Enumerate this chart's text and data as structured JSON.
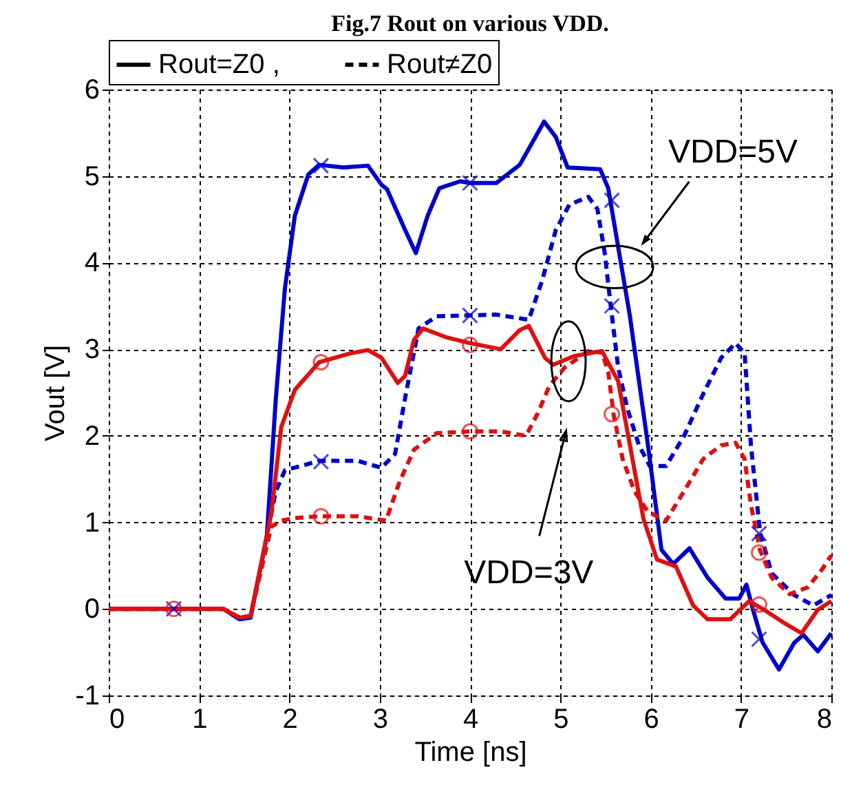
{
  "chart_data": {
    "type": "line",
    "title": "Fig.7  Rout on various VDD.",
    "xlabel": "Time [ns]",
    "ylabel": "Vout [V]",
    "xlim": [
      0,
      8
    ],
    "ylim": [
      -1,
      6
    ],
    "xticks": [
      0,
      1,
      2,
      3,
      4,
      5,
      6,
      7,
      8
    ],
    "yticks": [
      -1,
      0,
      1,
      2,
      3,
      4,
      5,
      6
    ],
    "grid": true,
    "series": [
      {
        "color": "#0000cc",
        "line_style": "solid",
        "x": [
          0,
          1.27,
          1.45,
          1.57,
          1.75,
          1.85,
          1.95,
          2.06,
          2.21,
          2.33,
          2.6,
          2.87,
          3.02,
          3.08,
          3.28,
          3.4,
          3.53,
          3.66,
          3.89,
          4.0,
          4.29,
          4.55,
          4.82,
          4.95,
          5.08,
          5.44,
          5.53,
          5.64,
          5.77,
          5.97,
          6.12,
          6.25,
          6.43,
          6.63,
          6.83,
          6.98,
          7.06,
          7.13,
          7.24,
          7.42,
          7.59,
          7.69,
          7.85,
          8.0
        ],
        "values": [
          0,
          0,
          -0.12,
          -0.1,
          0.84,
          2.43,
          3.7,
          4.54,
          5.02,
          5.13,
          5.1,
          5.12,
          4.9,
          4.85,
          4.38,
          4.11,
          4.54,
          4.86,
          4.94,
          4.92,
          4.92,
          5.13,
          5.63,
          5.45,
          5.1,
          5.08,
          4.86,
          4.18,
          3.38,
          1.89,
          0.68,
          0.52,
          0.7,
          0.36,
          0.12,
          0.12,
          0.28,
          0,
          -0.39,
          -0.7,
          -0.39,
          -0.3,
          -0.49,
          -0.28
        ]
      },
      {
        "color": "#0000cc",
        "line_style": "dashed",
        "x": [
          0,
          1.27,
          1.45,
          1.57,
          1.75,
          1.85,
          1.95,
          2.33,
          2.76,
          3.02,
          3.17,
          3.28,
          3.43,
          3.63,
          4.0,
          4.29,
          4.65,
          4.8,
          4.95,
          5.1,
          5.31,
          5.41,
          5.49,
          5.56,
          5.64,
          5.74,
          5.87,
          5.99,
          6.17,
          6.37,
          6.58,
          6.78,
          6.94,
          7.04,
          7.11,
          7.21,
          7.34,
          7.59,
          7.8,
          8.0
        ],
        "values": [
          0,
          0,
          -0.12,
          -0.1,
          0.84,
          1.36,
          1.6,
          1.71,
          1.71,
          1.63,
          1.79,
          2.43,
          3.24,
          3.38,
          3.39,
          3.4,
          3.34,
          3.8,
          4.38,
          4.67,
          4.76,
          4.62,
          4.12,
          3.48,
          2.79,
          2.32,
          1.89,
          1.65,
          1.65,
          2.0,
          2.48,
          2.9,
          3.07,
          2.95,
          1.89,
          0.89,
          0.41,
          0.16,
          0.04,
          0.16
        ]
      },
      {
        "color": "#dd1111",
        "line_style": "solid",
        "x": [
          0,
          1.27,
          1.45,
          1.57,
          1.8,
          1.91,
          2.06,
          2.33,
          2.67,
          2.87,
          3.02,
          3.2,
          3.28,
          3.38,
          3.48,
          3.73,
          4.0,
          4.34,
          4.55,
          4.65,
          4.83,
          4.92,
          5.15,
          5.46,
          5.64,
          5.77,
          5.92,
          6.07,
          6.28,
          6.47,
          6.63,
          6.88,
          7.09,
          7.24,
          7.49,
          7.67,
          7.85,
          8.0
        ],
        "values": [
          0,
          0,
          -0.1,
          -0.08,
          1.1,
          2.1,
          2.53,
          2.85,
          2.95,
          2.99,
          2.9,
          2.61,
          2.69,
          3.11,
          3.24,
          3.14,
          3.07,
          3.0,
          3.22,
          3.27,
          2.9,
          2.82,
          2.92,
          2.98,
          2.63,
          1.89,
          1.04,
          0.57,
          0.49,
          0.04,
          -0.12,
          -0.12,
          0.09,
          0.0,
          -0.17,
          -0.28,
          -0.01,
          0.09
        ]
      },
      {
        "color": "#dd1111",
        "line_style": "dashed",
        "x": [
          0,
          1.27,
          1.45,
          1.57,
          1.8,
          1.91,
          2.06,
          2.33,
          2.76,
          3.07,
          3.22,
          3.38,
          3.63,
          4.0,
          4.34,
          4.62,
          4.75,
          4.88,
          5.05,
          5.31,
          5.46,
          5.53,
          5.59,
          5.69,
          5.82,
          5.97,
          6.17,
          6.37,
          6.58,
          6.78,
          6.94,
          7.04,
          7.11,
          7.21,
          7.34,
          7.54,
          7.74,
          7.9,
          8.0
        ],
        "values": [
          0,
          0,
          -0.1,
          -0.08,
          0.95,
          1.02,
          1.05,
          1.07,
          1.07,
          1.02,
          1.47,
          1.84,
          2.03,
          2.05,
          2.05,
          2.0,
          2.26,
          2.58,
          2.79,
          2.98,
          2.96,
          2.74,
          2.24,
          1.73,
          1.36,
          1.12,
          1.02,
          1.36,
          1.73,
          1.89,
          1.92,
          1.73,
          1.2,
          0.68,
          0.36,
          0.17,
          0.25,
          0.46,
          0.62
        ]
      },
      {
        "type": "scatter",
        "marker": "cross",
        "color": "#0000cc",
        "x": [
          0.72,
          2.35,
          2.35,
          4.0,
          4.0,
          5.57,
          5.57,
          7.2,
          7.2
        ],
        "values": [
          0,
          5.12,
          1.7,
          4.92,
          3.39,
          4.72,
          3.5,
          0.87,
          -0.35
        ]
      },
      {
        "type": "scatter",
        "marker": "circle",
        "color": "#dd1111",
        "x": [
          0.72,
          2.35,
          2.35,
          4.0,
          4.0,
          5.57,
          7.2,
          7.2
        ],
        "values": [
          0,
          2.85,
          1.07,
          3.05,
          2.05,
          2.25,
          0.65,
          0.05
        ]
      }
    ],
    "annotations": [
      "Rout=Z0 ,",
      "Rout≠Z0",
      "VDD=5V",
      "VDD=3V"
    ]
  }
}
